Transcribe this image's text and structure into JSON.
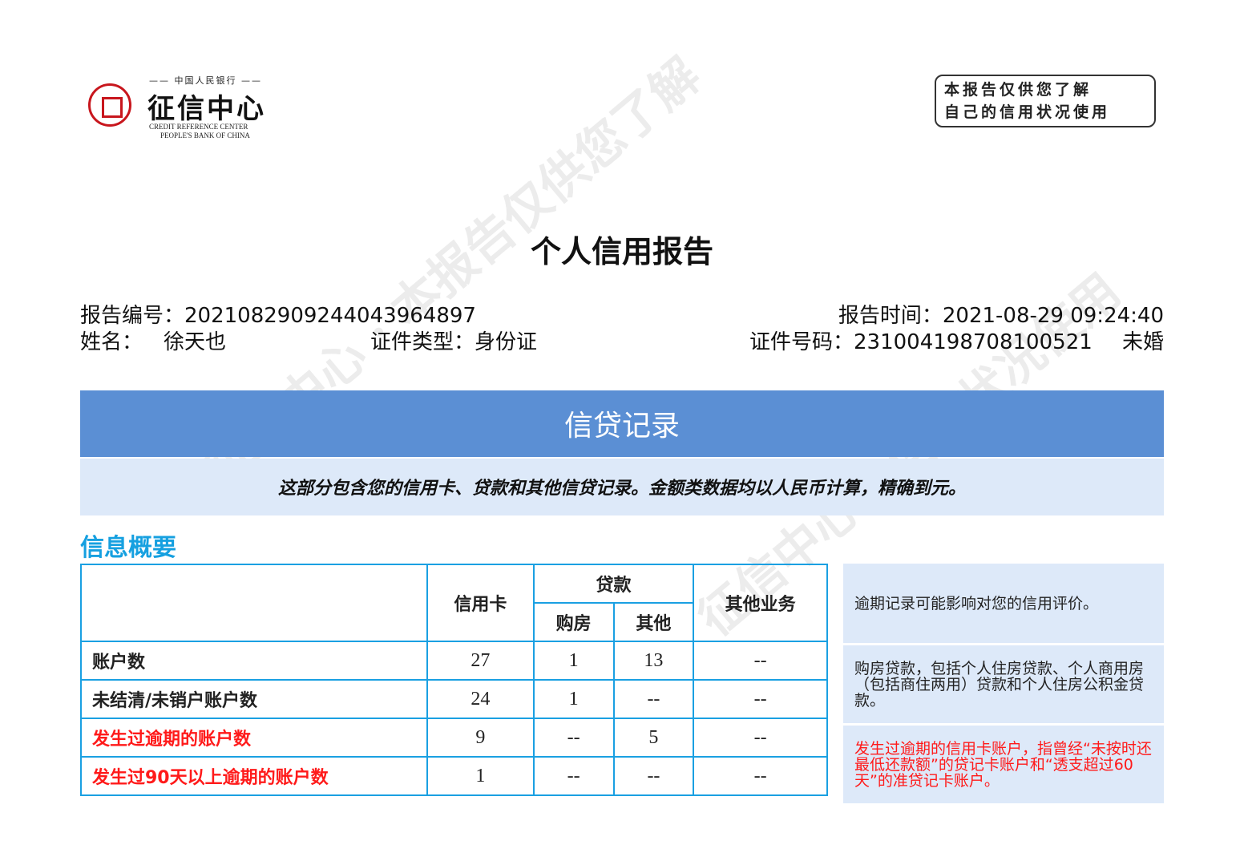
{
  "logo": {
    "top_text": "—— 中国人民银行 ——",
    "name_cn": "征信中心",
    "name_en_1": "CREDIT REFERENCE CENTER",
    "name_en_2": "PEOPLE'S BANK OF CHINA",
    "color": "#c8161d"
  },
  "stamp": {
    "line1": "本报告仅供您了解",
    "line2": "自己的信用状况使用"
  },
  "watermark": "征信中心 本报告仅供您了解自己的信用状况使用",
  "title": "个人信用报告",
  "header": {
    "report_no_label": "报告编号：",
    "report_no": "2021082909244043964897",
    "report_time_label": "报告时间：",
    "report_time": "2021-08-29 09:24:40",
    "name_label": "姓名：",
    "name": "徐天也",
    "id_type_label": "证件类型：",
    "id_type": "身份证",
    "id_no_label": "证件号码：",
    "id_no": "231004198708100521",
    "marital": "未婚"
  },
  "section_band": {
    "title": "信贷记录",
    "color": "#5b8fd4"
  },
  "section_note": "这部分包含您的信用卡、贷款和其他信贷记录。金额类数据均以人民币计算，精确到元。",
  "overview": {
    "title": "信息概要",
    "headers": {
      "credit_card": "信用卡",
      "loan": "贷款",
      "housing": "购房",
      "other": "其他",
      "other_business": "其他业务"
    },
    "rows": [
      {
        "label": "账户数",
        "red": false,
        "values": [
          "27",
          "1",
          "13",
          "--"
        ]
      },
      {
        "label": "未结清/未销户账户数",
        "red": false,
        "values": [
          "24",
          "1",
          "--",
          "--"
        ]
      },
      {
        "label": "发生过逾期的账户数",
        "red": true,
        "values": [
          "9",
          "--",
          "5",
          "--"
        ]
      },
      {
        "label": "发生过90天以上逾期的账户数",
        "red": true,
        "values": [
          "1",
          "--",
          "--",
          "--"
        ]
      }
    ],
    "notes": [
      "逾期记录可能影响对您的信用评价。",
      "购房贷款，包括个人住房贷款、个人商用房（包括商住两用）贷款和个人住房公积金贷款。",
      "发生过逾期的信用卡账户，指曾经“未按时还最低还款额”的贷记卡账户和“透支超过60天”的准贷记卡账户。"
    ]
  }
}
